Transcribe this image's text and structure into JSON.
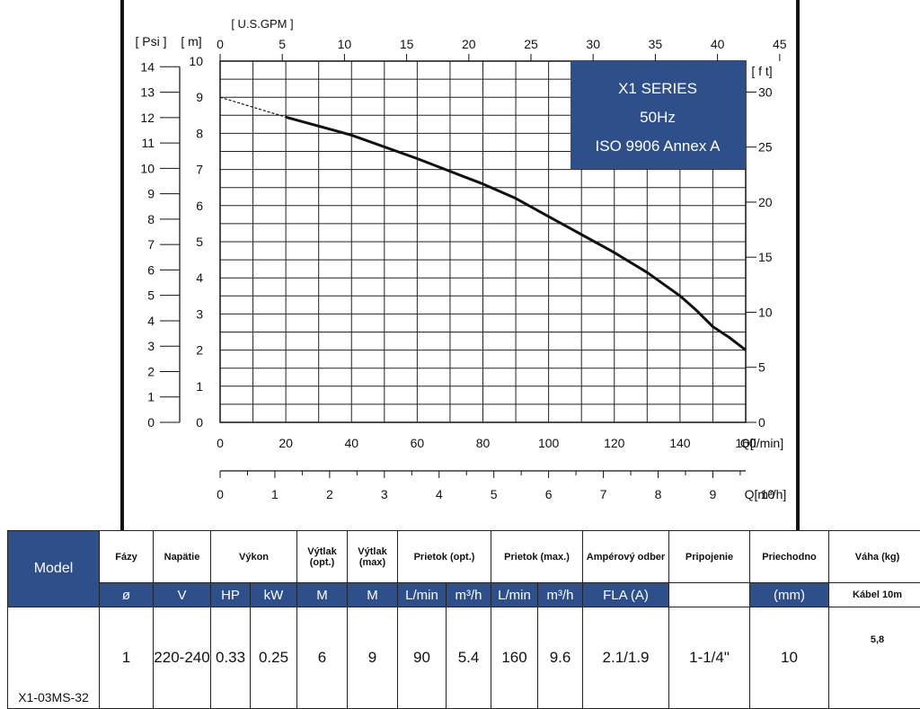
{
  "chart_data": {
    "type": "line",
    "info_box": {
      "line1": "X1 SERIES",
      "line2": "50Hz",
      "line3": "ISO 9906 Annex A",
      "color": "#2e4f8a"
    },
    "axes": {
      "x_bottom": {
        "label": "Q[l/min]",
        "range": [
          0,
          160
        ],
        "ticks": [
          0,
          20,
          40,
          60,
          80,
          100,
          120,
          140,
          160
        ]
      },
      "x_top": {
        "label": "[ U.S.GPM ]",
        "ticks": [
          0,
          5,
          10,
          15,
          20,
          25,
          30,
          35,
          40,
          45
        ]
      },
      "x_m3h": {
        "label": "Q[m³/h]",
        "ticks": [
          0,
          1,
          2,
          3,
          4,
          5,
          6,
          7,
          8,
          9,
          10
        ]
      },
      "y_left_m": {
        "label": "[ m]",
        "range": [
          0,
          10
        ],
        "ticks": [
          0,
          1,
          2,
          3,
          4,
          5,
          6,
          7,
          8,
          9,
          10
        ]
      },
      "y_left_psi": {
        "label": "[ Psi ]",
        "ticks": [
          0,
          1,
          2,
          3,
          4,
          5,
          6,
          7,
          8,
          9,
          10,
          11,
          12,
          13,
          14
        ]
      },
      "y_right_ft": {
        "label": "[ f t]",
        "ticks": [
          0,
          5,
          10,
          15,
          20,
          25,
          30
        ]
      }
    },
    "grid": true,
    "series": [
      {
        "x": [
          0,
          20,
          40,
          60,
          70,
          80,
          90,
          100,
          110,
          120,
          130,
          140,
          145,
          150,
          155,
          160
        ],
        "y": [
          9.0,
          8.45,
          7.95,
          7.3,
          6.95,
          6.6,
          6.2,
          5.7,
          5.2,
          4.7,
          4.15,
          3.5,
          3.1,
          2.65,
          2.35,
          2.0
        ],
        "dashed_until_x": 20
      }
    ]
  },
  "table": {
    "model_header": "Model",
    "headers": [
      "Fázy",
      "Napätie",
      "Výkon",
      "Výtlak (opt.)",
      "Výtlak (max)",
      "Prietok (opt.)",
      "Prietok (max.)",
      "Ampérový odber",
      "Pripojenie",
      "Priechodno",
      "Váha (kg)"
    ],
    "units": [
      "ø",
      "V",
      "HP",
      "kW",
      "M",
      "M",
      "L/min",
      "m³/h",
      "L/min",
      "m³/h",
      "FLA (A)",
      "",
      "(mm)",
      "Kábel 10m"
    ],
    "row": {
      "model": "X1-03MS-32",
      "values": [
        "1",
        "220-240",
        "0.33",
        "0.25",
        "6",
        "9",
        "90",
        "5.4",
        "160",
        "9.6",
        "2.1/1.9",
        "1-1/4\"",
        "10",
        "5,8"
      ]
    }
  }
}
